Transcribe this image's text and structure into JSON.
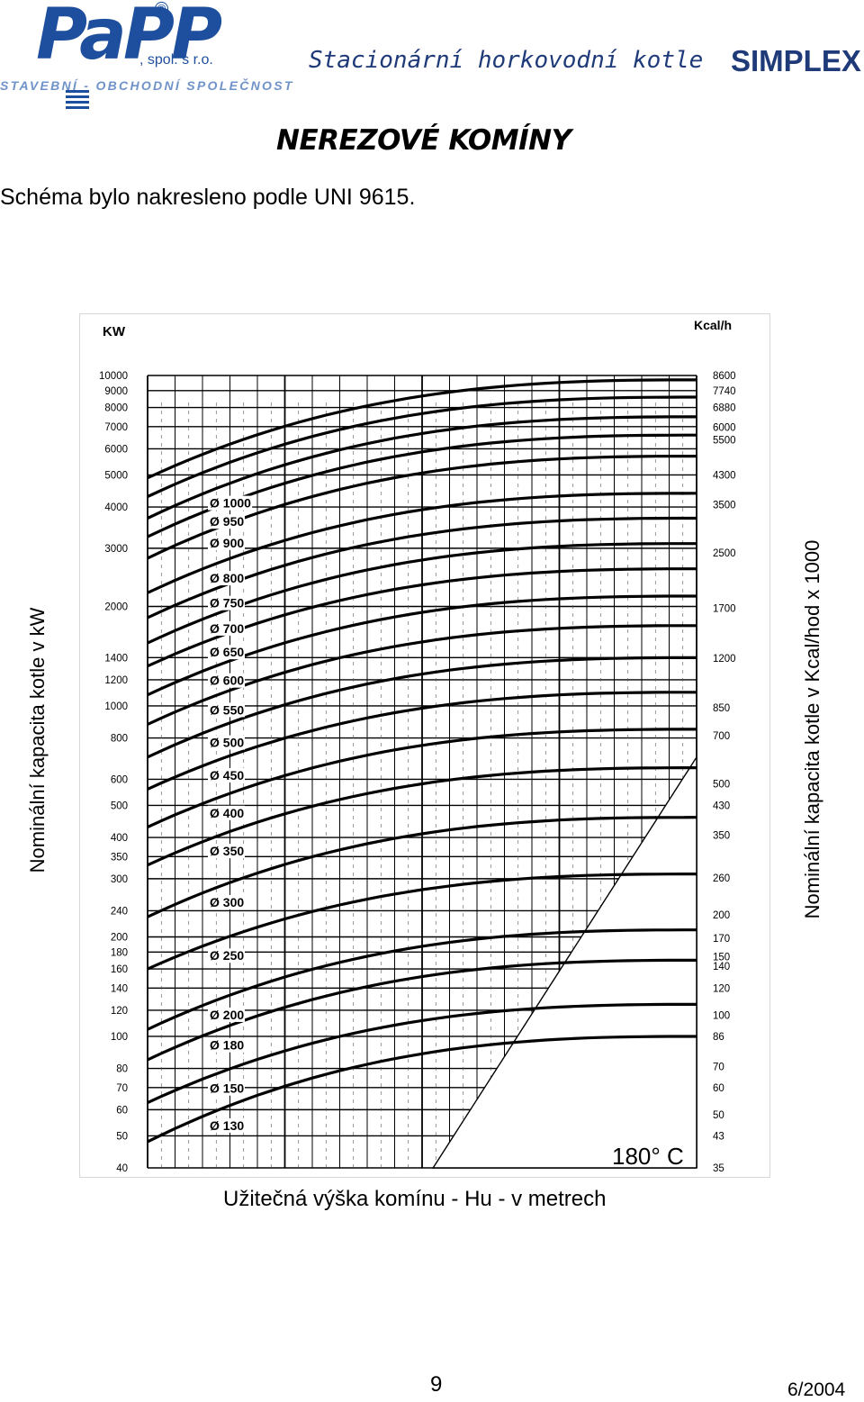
{
  "logo": {
    "name": "PaPP",
    "suffix": ", spol. s r.o.",
    "tagline": "STAVEBNÍ - OBCHODNÍ SPOLEČNOST",
    "registered": "®"
  },
  "header": {
    "subtitle": "Stacionární horkovodní kotle",
    "brand": "SIMPLEX"
  },
  "section_title": "NEREZOVÉ KOMÍNY",
  "note": "Schéma bylo nakresleno podle UNI 9615.",
  "axis_labels": {
    "left": "Nominální kapacita kotle v kW",
    "right": "Nominální kapacita kotle v Kcal/hod x 1000",
    "bottom": "Užitečná výška komínu - Hu - v metrech"
  },
  "footer": {
    "page": "9",
    "date": "6/2004"
  },
  "chart_data": {
    "type": "line",
    "title": "",
    "xlabel": "Užitečná výška komínu - Hu - v metrech",
    "ylabel_left": "KW",
    "ylabel_right": "Kcal/h",
    "y_scale": "log",
    "ylim": [
      40,
      10000
    ],
    "xlim": [
      0,
      1
    ],
    "x_tick_labels": [],
    "left_unit": "KW",
    "right_unit": "Kcal/h",
    "left_ticks": [
      {
        "value": 40,
        "label": "40"
      },
      {
        "value": 50,
        "label": "50"
      },
      {
        "value": 60,
        "label": "60"
      },
      {
        "value": 70,
        "label": "70"
      },
      {
        "value": 80,
        "label": "80"
      },
      {
        "value": 100,
        "label": "100"
      },
      {
        "value": 120,
        "label": "120"
      },
      {
        "value": 140,
        "label": "140"
      },
      {
        "value": 160,
        "label": "160"
      },
      {
        "value": 180,
        "label": "180"
      },
      {
        "value": 200,
        "label": "200"
      },
      {
        "value": 240,
        "label": "240"
      },
      {
        "value": 300,
        "label": "300"
      },
      {
        "value": 350,
        "label": "350"
      },
      {
        "value": 400,
        "label": "400"
      },
      {
        "value": 500,
        "label": "500"
      },
      {
        "value": 600,
        "label": "600"
      },
      {
        "value": 800,
        "label": "800"
      },
      {
        "value": 1000,
        "label": "1000"
      },
      {
        "value": 1200,
        "label": "1200"
      },
      {
        "value": 1400,
        "label": "1400"
      },
      {
        "value": 2000,
        "label": "2000"
      },
      {
        "value": 3000,
        "label": "3000"
      },
      {
        "value": 4000,
        "label": "4000"
      },
      {
        "value": 5000,
        "label": "5000"
      },
      {
        "value": 6000,
        "label": "6000"
      },
      {
        "value": 7000,
        "label": "7000"
      },
      {
        "value": 8000,
        "label": "8000"
      },
      {
        "value": 9000,
        "label": "9000"
      },
      {
        "value": 10000,
        "label": "10000"
      }
    ],
    "right_ticks": [
      {
        "kw": 40,
        "label": "35"
      },
      {
        "kw": 50,
        "label": "43"
      },
      {
        "kw": 58,
        "label": "50"
      },
      {
        "kw": 70,
        "label": "60"
      },
      {
        "kw": 81,
        "label": "70"
      },
      {
        "kw": 100,
        "label": "86"
      },
      {
        "kw": 116,
        "label": "100"
      },
      {
        "kw": 140,
        "label": "120"
      },
      {
        "kw": 163,
        "label": "140"
      },
      {
        "kw": 174,
        "label": "150"
      },
      {
        "kw": 198,
        "label": "170"
      },
      {
        "kw": 233,
        "label": "200"
      },
      {
        "kw": 302,
        "label": "260"
      },
      {
        "kw": 407,
        "label": "350"
      },
      {
        "kw": 500,
        "label": "430"
      },
      {
        "kw": 581,
        "label": "500"
      },
      {
        "kw": 814,
        "label": "700"
      },
      {
        "kw": 988,
        "label": "850"
      },
      {
        "kw": 1395,
        "label": "1200"
      },
      {
        "kw": 1977,
        "label": "1700"
      },
      {
        "kw": 2907,
        "label": "2500"
      },
      {
        "kw": 4070,
        "label": "3500"
      },
      {
        "kw": 5000,
        "label": "4300"
      },
      {
        "kw": 6395,
        "label": "5500"
      },
      {
        "kw": 6977,
        "label": "6000"
      },
      {
        "kw": 8000,
        "label": "6880"
      },
      {
        "kw": 9000,
        "label": "7740"
      },
      {
        "kw": 10000,
        "label": "8600"
      }
    ],
    "series": [
      {
        "name": "Ø 130",
        "start": 48,
        "end": 100
      },
      {
        "name": "Ø 150",
        "start": 63,
        "end": 125
      },
      {
        "name": "Ø 180",
        "start": 85,
        "end": 170
      },
      {
        "name": "Ø 200",
        "start": 105,
        "end": 210
      },
      {
        "name": "Ø 250",
        "start": 160,
        "end": 310
      },
      {
        "name": "Ø 300",
        "start": 230,
        "end": 460
      },
      {
        "name": "Ø 350",
        "start": 330,
        "end": 650
      },
      {
        "name": "Ø 400",
        "start": 430,
        "end": 850
      },
      {
        "name": "Ø 450",
        "start": 560,
        "end": 1100
      },
      {
        "name": "Ø 500",
        "start": 700,
        "end": 1400
      },
      {
        "name": "Ø 550",
        "start": 880,
        "end": 1750
      },
      {
        "name": "Ø 600",
        "start": 1080,
        "end": 2150
      },
      {
        "name": "Ø 650",
        "start": 1320,
        "end": 2600
      },
      {
        "name": "Ø 700",
        "start": 1550,
        "end": 3100
      },
      {
        "name": "Ø 750",
        "start": 1850,
        "end": 3700
      },
      {
        "name": "Ø 800",
        "start": 2200,
        "end": 4400
      },
      {
        "name": "Ø 900",
        "start": 2800,
        "end": 5700
      },
      {
        "name": "Ø 950",
        "start": 3250,
        "end": 6600
      },
      {
        "name": "Ø 1000",
        "start": 3700,
        "end": 7500
      },
      {
        "name": "",
        "start": 4300,
        "end": 8600
      },
      {
        "name": "",
        "start": 4900,
        "end": 9700
      }
    ],
    "annotations": [
      "180° C"
    ]
  }
}
